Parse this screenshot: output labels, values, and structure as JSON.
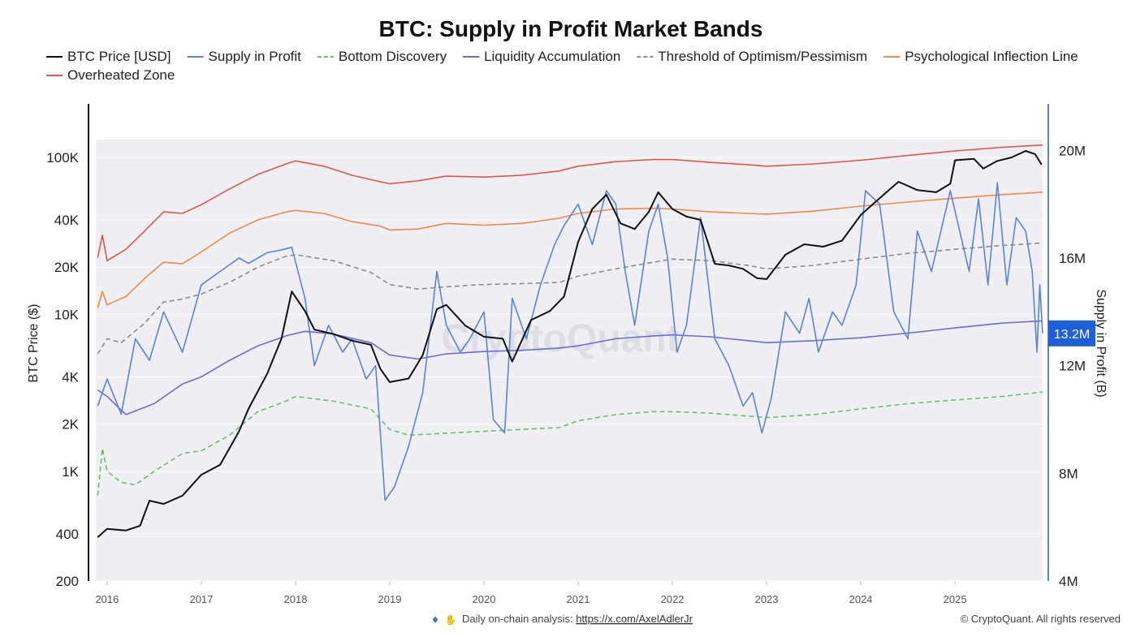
{
  "chart_data": {
    "type": "line",
    "title": "BTC: Supply in Profit Market Bands",
    "ylabel_left": "BTC Price ($)",
    "ylabel_right": "Supply in Profit (B)",
    "y_left_ticks": [
      200,
      400,
      1000,
      2000,
      4000,
      10000,
      20000,
      40000,
      100000
    ],
    "y_left_tick_labels": [
      "200",
      "400",
      "1K",
      "2K",
      "4K",
      "10K",
      "20K",
      "40K",
      "100K"
    ],
    "y_left_range": [
      200,
      130000
    ],
    "y_left_scale": "log",
    "y_right_ticks": [
      4,
      8,
      12,
      16,
      20
    ],
    "y_right_tick_labels": [
      "4M",
      "8M",
      "12M",
      "16M",
      "20M"
    ],
    "y_right_range": [
      4,
      20.4
    ],
    "x_range": [
      2015.88,
      2025.93
    ],
    "x_ticks": [
      2016,
      2017,
      2018,
      2019,
      2020,
      2021,
      2022,
      2023,
      2024,
      2025
    ],
    "x_tick_labels": [
      "2016",
      "2017",
      "2018",
      "2019",
      "2020",
      "2021",
      "2022",
      "2023",
      "2024",
      "2025"
    ],
    "current_value_label": "13.2M",
    "legend": [
      {
        "name": "BTC Price [USD]",
        "color": "#111111",
        "dash": "solid"
      },
      {
        "name": "Supply in Profit",
        "color": "#5b83db",
        "dash": "solid"
      },
      {
        "name": "Bottom Discovery",
        "color": "#6abf69",
        "dash": "dashed"
      },
      {
        "name": "Liquidity Accumulation",
        "color": "#6b6be0",
        "dash": "solid"
      },
      {
        "name": "Threshold of Optimism/Pessimism",
        "color": "#8c8c8c",
        "dash": "dashed"
      },
      {
        "name": "Psychological Inflection Line",
        "color": "#ef8a4a",
        "dash": "solid"
      },
      {
        "name": "Overheated Zone",
        "color": "#e0574c",
        "dash": "solid"
      }
    ],
    "series": [
      {
        "name": "BTC Price [USD]",
        "axis": "left",
        "color": "#111111",
        "x": [
          2015.9,
          2016.0,
          2016.2,
          2016.35,
          2016.45,
          2016.6,
          2016.8,
          2017.0,
          2017.2,
          2017.4,
          2017.5,
          2017.7,
          2017.85,
          2017.96,
          2018.1,
          2018.2,
          2018.4,
          2018.6,
          2018.8,
          2018.9,
          2019.0,
          2019.2,
          2019.35,
          2019.5,
          2019.6,
          2019.8,
          2020.0,
          2020.2,
          2020.3,
          2020.5,
          2020.7,
          2020.85,
          2021.0,
          2021.15,
          2021.3,
          2021.45,
          2021.6,
          2021.75,
          2021.85,
          2022.0,
          2022.15,
          2022.3,
          2022.45,
          2022.6,
          2022.75,
          2022.9,
          2023.0,
          2023.2,
          2023.4,
          2023.6,
          2023.8,
          2024.0,
          2024.2,
          2024.4,
          2024.6,
          2024.8,
          2024.95,
          2025.0,
          2025.2,
          2025.3,
          2025.45,
          2025.6,
          2025.75,
          2025.85,
          2025.92
        ],
        "values": [
          380,
          430,
          420,
          450,
          650,
          620,
          700,
          950,
          1100,
          1800,
          2500,
          4200,
          7000,
          14000,
          10500,
          8000,
          7500,
          6800,
          6400,
          4500,
          3700,
          3900,
          5500,
          10800,
          11500,
          8500,
          7200,
          7000,
          5000,
          9200,
          10500,
          13000,
          29000,
          47000,
          58000,
          38000,
          35000,
          45000,
          60000,
          47000,
          42000,
          40000,
          21000,
          20500,
          19500,
          17000,
          16800,
          24000,
          28000,
          27000,
          29500,
          43000,
          55000,
          70000,
          62000,
          60000,
          68000,
          96000,
          98000,
          85000,
          95000,
          100000,
          110000,
          105000,
          90000
        ]
      },
      {
        "name": "Supply in Profit",
        "axis": "right",
        "color": "#5b83db",
        "x": [
          2015.9,
          2016.0,
          2016.15,
          2016.3,
          2016.45,
          2016.6,
          2016.8,
          2017.0,
          2017.2,
          2017.4,
          2017.5,
          2017.7,
          2017.85,
          2017.96,
          2018.1,
          2018.2,
          2018.35,
          2018.5,
          2018.6,
          2018.75,
          2018.85,
          2018.95,
          2019.05,
          2019.2,
          2019.35,
          2019.5,
          2019.6,
          2019.75,
          2019.85,
          2020.0,
          2020.1,
          2020.22,
          2020.3,
          2020.45,
          2020.6,
          2020.75,
          2020.85,
          2021.0,
          2021.15,
          2021.3,
          2021.4,
          2021.5,
          2021.6,
          2021.75,
          2021.85,
          2021.95,
          2022.05,
          2022.15,
          2022.3,
          2022.45,
          2022.6,
          2022.75,
          2022.85,
          2022.95,
          2023.05,
          2023.2,
          2023.35,
          2023.45,
          2023.55,
          2023.7,
          2023.8,
          2023.95,
          2024.05,
          2024.2,
          2024.35,
          2024.5,
          2024.6,
          2024.75,
          2024.85,
          2024.95,
          2025.05,
          2025.15,
          2025.25,
          2025.35,
          2025.45,
          2025.55,
          2025.65,
          2025.75,
          2025.82,
          2025.87,
          2025.9,
          2025.93
        ],
        "values": [
          10.5,
          11.5,
          10.2,
          13.0,
          12.2,
          14.0,
          12.5,
          15.0,
          15.5,
          16.0,
          15.8,
          16.2,
          16.3,
          16.4,
          14.5,
          12.0,
          13.5,
          12.5,
          13.0,
          11.5,
          12.0,
          7.0,
          7.5,
          9.0,
          11.0,
          15.5,
          13.5,
          12.5,
          13.0,
          14.0,
          10.0,
          9.5,
          14.5,
          13.0,
          15.0,
          16.5,
          17.2,
          18.0,
          16.5,
          18.5,
          18.0,
          15.5,
          13.5,
          17.0,
          18.0,
          16.0,
          12.5,
          13.5,
          17.5,
          13.0,
          12.0,
          10.5,
          11.0,
          9.5,
          10.8,
          14.0,
          13.2,
          14.5,
          12.5,
          14.0,
          13.5,
          15.0,
          18.5,
          18.0,
          14.0,
          13.0,
          17.0,
          15.5,
          17.0,
          18.5,
          17.0,
          15.5,
          18.2,
          15.0,
          18.8,
          15.0,
          17.5,
          17.0,
          15.5,
          12.5,
          15.0,
          13.2
        ]
      },
      {
        "name": "Bottom Discovery",
        "axis": "left",
        "color": "#6abf69",
        "x": [
          2015.9,
          2015.95,
          2016.0,
          2016.15,
          2016.3,
          2016.5,
          2016.8,
          2017.0,
          2017.3,
          2017.6,
          2017.9,
          2018.0,
          2018.4,
          2018.8,
          2019.0,
          2019.2,
          2019.6,
          2020.0,
          2020.4,
          2020.8,
          2021.0,
          2021.4,
          2021.8,
          2022.0,
          2022.4,
          2022.8,
          2023.0,
          2023.5,
          2024.0,
          2024.5,
          2025.0,
          2025.5,
          2025.93
        ],
        "values": [
          700,
          1400,
          1000,
          850,
          820,
          1000,
          1300,
          1350,
          1700,
          2400,
          2800,
          3000,
          2800,
          2500,
          1850,
          1700,
          1750,
          1800,
          1850,
          1900,
          2100,
          2300,
          2400,
          2400,
          2350,
          2250,
          2200,
          2300,
          2500,
          2700,
          2850,
          3000,
          3200
        ]
      },
      {
        "name": "Liquidity Accumulation",
        "axis": "left",
        "color": "#6b6be0",
        "x": [
          2015.9,
          2016.0,
          2016.2,
          2016.5,
          2016.8,
          2017.0,
          2017.3,
          2017.6,
          2017.9,
          2018.1,
          2018.4,
          2018.8,
          2019.0,
          2019.3,
          2019.6,
          2020.0,
          2020.4,
          2020.8,
          2021.0,
          2021.4,
          2021.8,
          2022.0,
          2022.4,
          2022.8,
          2023.0,
          2023.5,
          2024.0,
          2024.5,
          2025.0,
          2025.5,
          2025.93
        ],
        "values": [
          3300,
          3000,
          2300,
          2700,
          3600,
          4000,
          5100,
          6300,
          7300,
          7800,
          7500,
          6600,
          5500,
          5200,
          5600,
          5800,
          5900,
          6100,
          6300,
          7000,
          7300,
          7400,
          7200,
          6800,
          6600,
          6800,
          7100,
          7600,
          8200,
          8800,
          9100
        ]
      },
      {
        "name": "Threshold of Optimism/Pessimism",
        "axis": "left",
        "color": "#8c8c8c",
        "x": [
          2015.9,
          2016.0,
          2016.15,
          2016.4,
          2016.6,
          2016.8,
          2017.0,
          2017.3,
          2017.6,
          2017.9,
          2018.0,
          2018.4,
          2018.8,
          2019.0,
          2019.3,
          2019.6,
          2020.0,
          2020.4,
          2020.8,
          2021.0,
          2021.4,
          2021.8,
          2022.0,
          2022.4,
          2022.8,
          2023.0,
          2023.5,
          2024.0,
          2024.5,
          2025.0,
          2025.5,
          2025.93
        ],
        "values": [
          5600,
          7000,
          6600,
          8800,
          12000,
          12500,
          13500,
          16000,
          20000,
          23500,
          24000,
          22000,
          18500,
          15500,
          14500,
          15000,
          15500,
          15700,
          16000,
          17500,
          19500,
          21500,
          22500,
          22000,
          20500,
          19500,
          20500,
          22500,
          24500,
          26000,
          27500,
          28500
        ]
      },
      {
        "name": "Psychological Inflection Line",
        "axis": "left",
        "color": "#ef8a4a",
        "x": [
          2015.9,
          2015.95,
          2016.0,
          2016.2,
          2016.4,
          2016.6,
          2016.8,
          2017.0,
          2017.3,
          2017.6,
          2017.9,
          2018.0,
          2018.3,
          2018.6,
          2018.9,
          2019.0,
          2019.3,
          2019.6,
          2020.0,
          2020.4,
          2020.8,
          2021.0,
          2021.4,
          2021.8,
          2022.0,
          2022.4,
          2022.8,
          2023.0,
          2023.5,
          2024.0,
          2024.5,
          2025.0,
          2025.5,
          2025.93
        ],
        "values": [
          11000,
          14000,
          11500,
          13000,
          17000,
          21500,
          21000,
          25000,
          33000,
          40000,
          45000,
          46000,
          44000,
          39000,
          36500,
          34500,
          35000,
          38000,
          37000,
          38000,
          41000,
          44000,
          47000,
          47500,
          47000,
          45000,
          44000,
          43500,
          45500,
          49000,
          52000,
          55000,
          58000,
          60000
        ]
      },
      {
        "name": "Overheated Zone",
        "axis": "left",
        "color": "#e0574c",
        "x": [
          2015.9,
          2015.95,
          2016.0,
          2016.2,
          2016.4,
          2016.6,
          2016.8,
          2017.0,
          2017.3,
          2017.6,
          2017.9,
          2018.0,
          2018.3,
          2018.6,
          2018.9,
          2019.0,
          2019.3,
          2019.6,
          2020.0,
          2020.4,
          2020.8,
          2021.0,
          2021.4,
          2021.8,
          2022.0,
          2022.4,
          2022.8,
          2023.0,
          2023.5,
          2024.0,
          2024.5,
          2025.0,
          2025.5,
          2025.93
        ],
        "values": [
          23000,
          32000,
          22000,
          26000,
          34000,
          45000,
          44000,
          50000,
          63000,
          78000,
          91000,
          95000,
          88000,
          77000,
          70000,
          68000,
          71000,
          76000,
          75000,
          77000,
          82000,
          88000,
          94000,
          97000,
          97000,
          93000,
          90000,
          88000,
          91000,
          96000,
          103000,
          110000,
          116000,
          120000
        ]
      }
    ],
    "legend_position": "top",
    "grid": true
  },
  "footer": {
    "text": "Daily on-chain analysis: ",
    "link": "https://x.com/AxelAdlerJr",
    "copyright": "© CryptoQuant. All rights reserved",
    "watermark": "CryptoQuant"
  }
}
